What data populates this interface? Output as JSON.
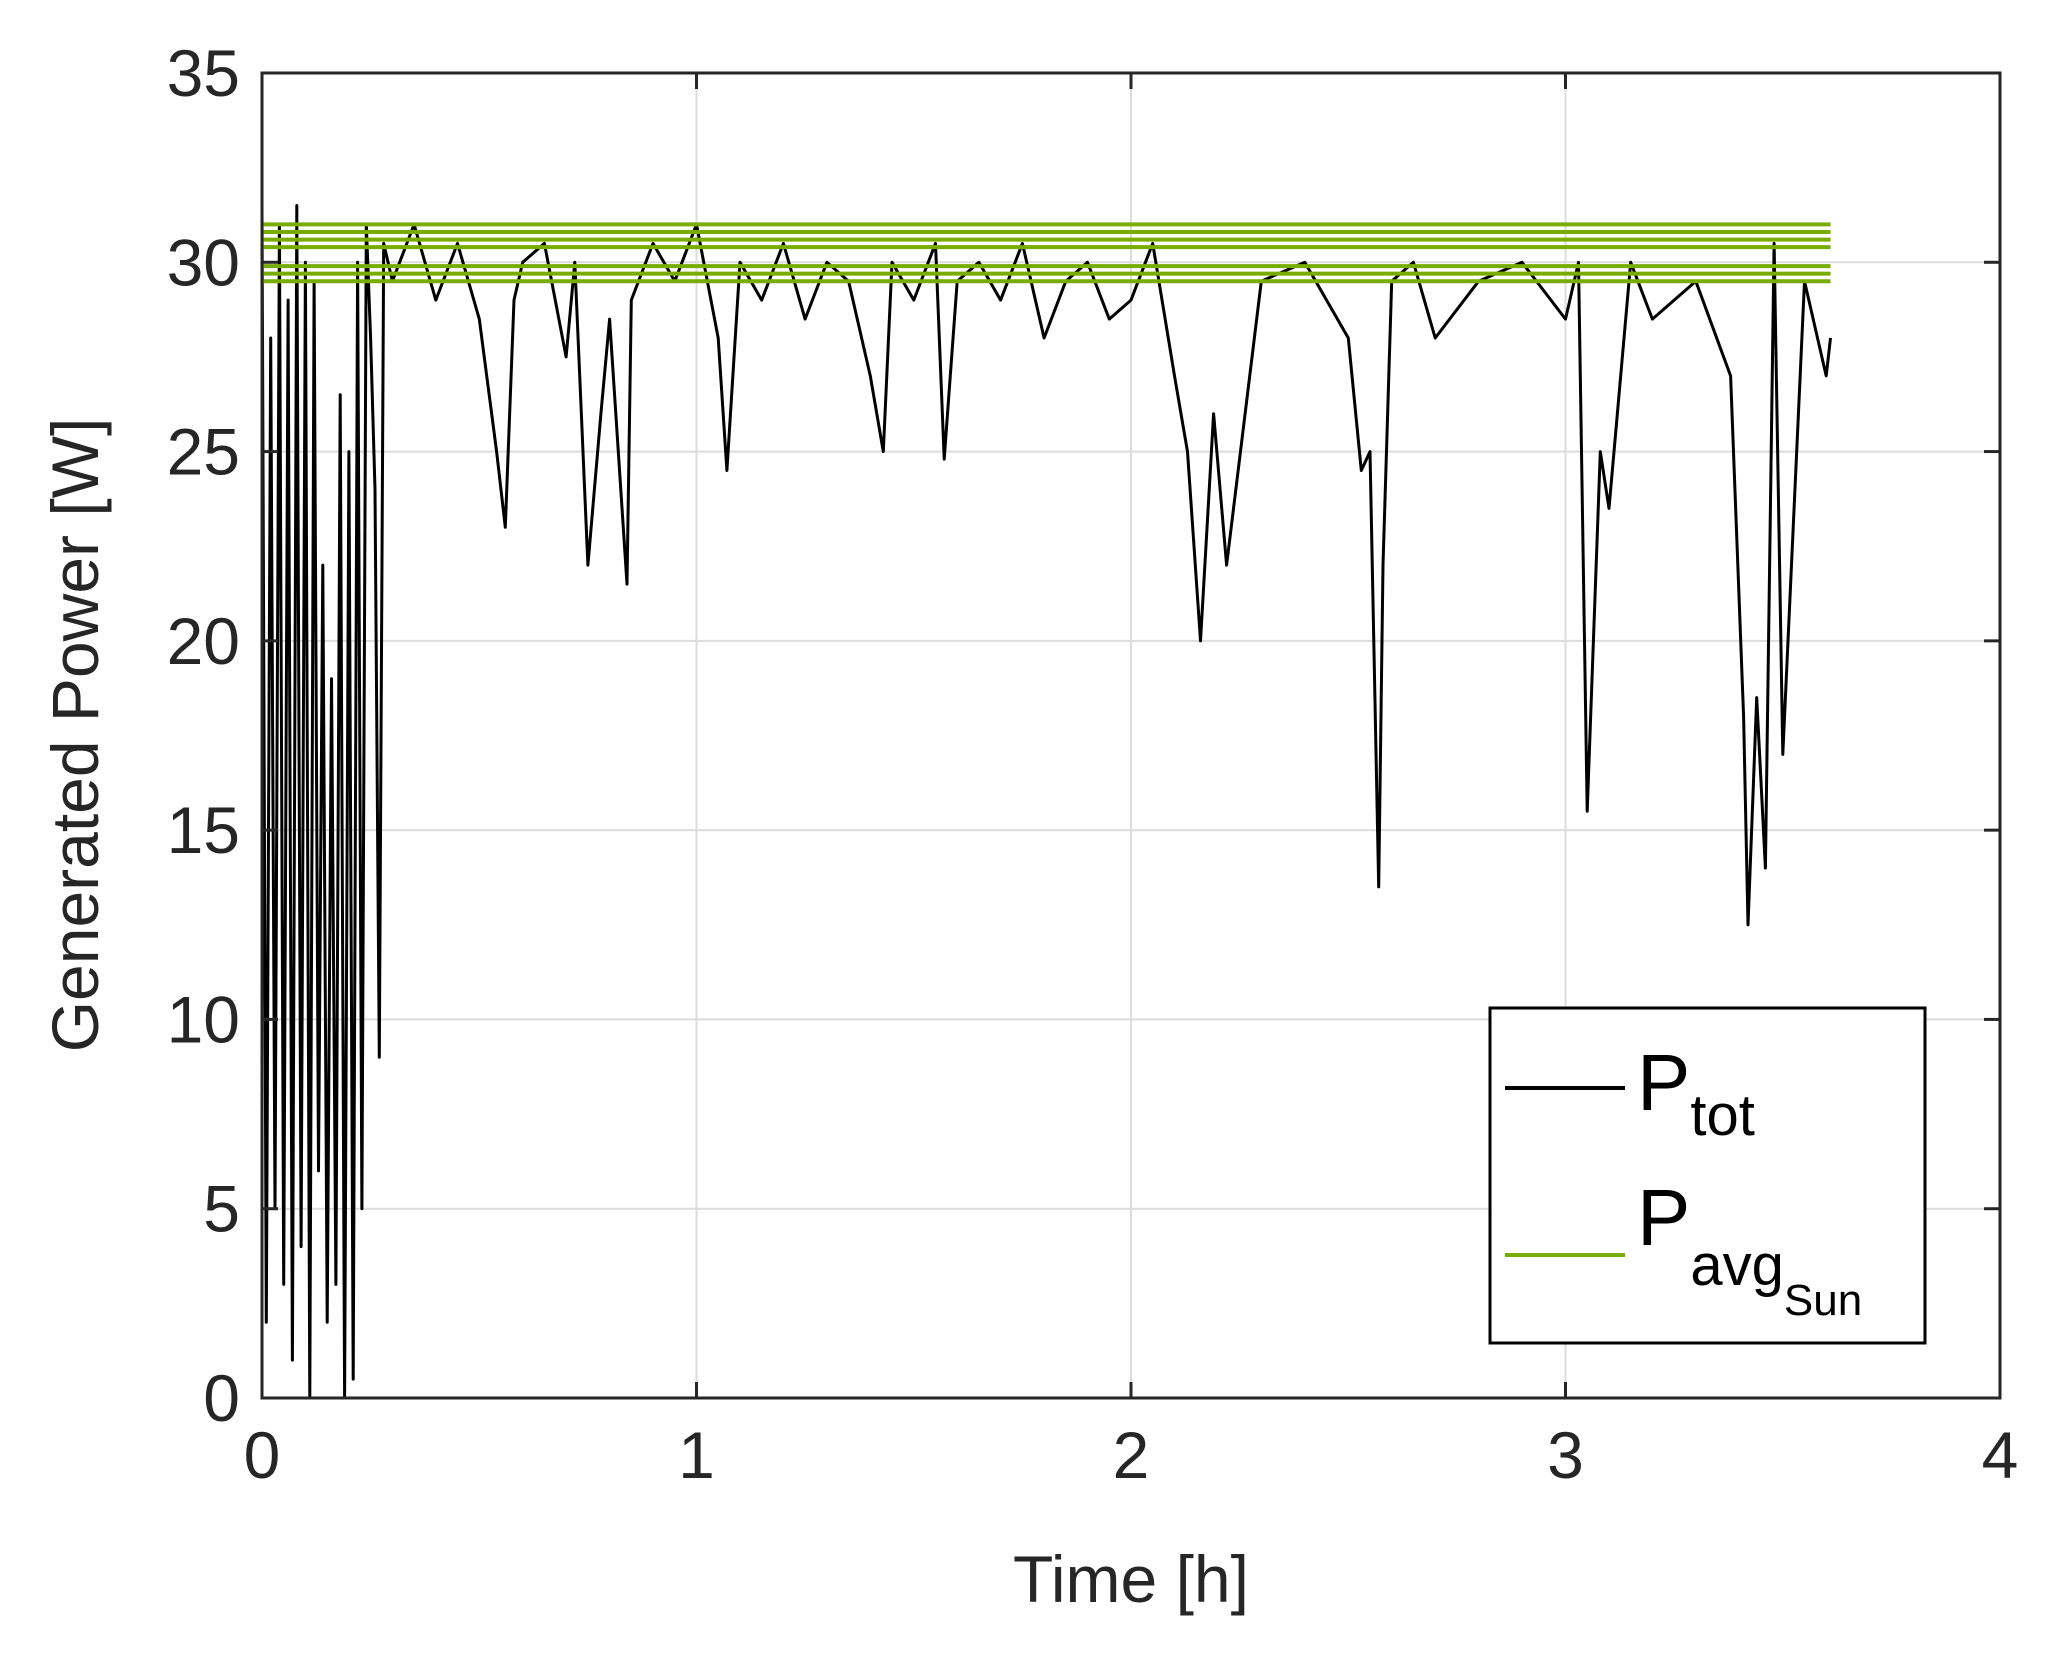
{
  "chart_data": {
    "type": "line",
    "title": "",
    "xlabel": "Time [h]",
    "ylabel": "Generated Power [W]",
    "xlim": [
      0,
      4
    ],
    "ylim": [
      0,
      35
    ],
    "xticks": [
      "0",
      "1",
      "2",
      "3",
      "4"
    ],
    "yticks": [
      "0",
      "5",
      "10",
      "15",
      "20",
      "25",
      "30",
      "35"
    ],
    "grid": true,
    "legend_placement": "bottom-right",
    "legend": [
      {
        "main": "P",
        "sub": "tot",
        "subsub": "",
        "color": "#000000"
      },
      {
        "main": "P",
        "sub": "avg",
        "subsub": "Sun",
        "color": "#77ac00"
      }
    ],
    "series": [
      {
        "name": "Ptot",
        "color": "#000000",
        "x": [
          0.0,
          0.01,
          0.02,
          0.03,
          0.04,
          0.05,
          0.06,
          0.07,
          0.08,
          0.09,
          0.1,
          0.11,
          0.12,
          0.13,
          0.14,
          0.15,
          0.16,
          0.17,
          0.18,
          0.19,
          0.2,
          0.21,
          0.22,
          0.23,
          0.24,
          0.25,
          0.26,
          0.27,
          0.28,
          0.3,
          0.35,
          0.4,
          0.45,
          0.5,
          0.54,
          0.56,
          0.58,
          0.6,
          0.65,
          0.7,
          0.72,
          0.75,
          0.78,
          0.8,
          0.84,
          0.85,
          0.9,
          0.95,
          1.0,
          1.05,
          1.07,
          1.1,
          1.15,
          1.2,
          1.25,
          1.3,
          1.35,
          1.4,
          1.43,
          1.45,
          1.5,
          1.55,
          1.57,
          1.6,
          1.65,
          1.7,
          1.75,
          1.8,
          1.85,
          1.9,
          1.95,
          2.0,
          2.05,
          2.1,
          2.13,
          2.16,
          2.19,
          2.22,
          2.3,
          2.4,
          2.5,
          2.53,
          2.55,
          2.57,
          2.58,
          2.6,
          2.65,
          2.7,
          2.8,
          2.9,
          3.0,
          3.03,
          3.05,
          3.08,
          3.1,
          3.15,
          3.2,
          3.3,
          3.38,
          3.41,
          3.42,
          3.44,
          3.46,
          3.48,
          3.5,
          3.55,
          3.6,
          3.61
        ],
        "y": [
          31.5,
          2.0,
          28.0,
          5.0,
          31.0,
          3.0,
          29.0,
          1.0,
          31.5,
          4.0,
          30.0,
          0.0,
          29.5,
          6.0,
          22.0,
          2.0,
          19.0,
          3.0,
          26.5,
          0.0,
          25.0,
          0.5,
          30.0,
          5.0,
          31.0,
          28.0,
          24.0,
          9.0,
          30.5,
          29.5,
          31.0,
          29.0,
          30.5,
          28.5,
          25.0,
          23.0,
          29.0,
          30.0,
          30.5,
          27.5,
          30.0,
          22.0,
          26.0,
          28.5,
          21.5,
          29.0,
          30.5,
          29.5,
          31.0,
          28.0,
          24.5,
          30.0,
          29.0,
          30.5,
          28.5,
          30.0,
          29.5,
          27.0,
          25.0,
          30.0,
          29.0,
          30.5,
          24.8,
          29.5,
          30.0,
          29.0,
          30.5,
          28.0,
          29.5,
          30.0,
          28.5,
          29.0,
          30.5,
          27.0,
          25.0,
          20.0,
          26.0,
          22.0,
          29.5,
          30.0,
          28.0,
          24.5,
          25.0,
          13.5,
          22.0,
          29.5,
          30.0,
          28.0,
          29.5,
          30.0,
          28.5,
          30.0,
          15.5,
          25.0,
          23.5,
          30.0,
          28.5,
          29.5,
          27.0,
          18.0,
          12.5,
          18.5,
          14.0,
          30.5,
          17.0,
          29.5,
          27.0,
          28.0
        ]
      },
      {
        "name": "Pavg Sun",
        "color": "#77ac00",
        "x": [
          0,
          3.61
        ],
        "levels": [
          29.5,
          29.7,
          29.9,
          30.4,
          30.6,
          30.8,
          31.0
        ]
      }
    ]
  }
}
